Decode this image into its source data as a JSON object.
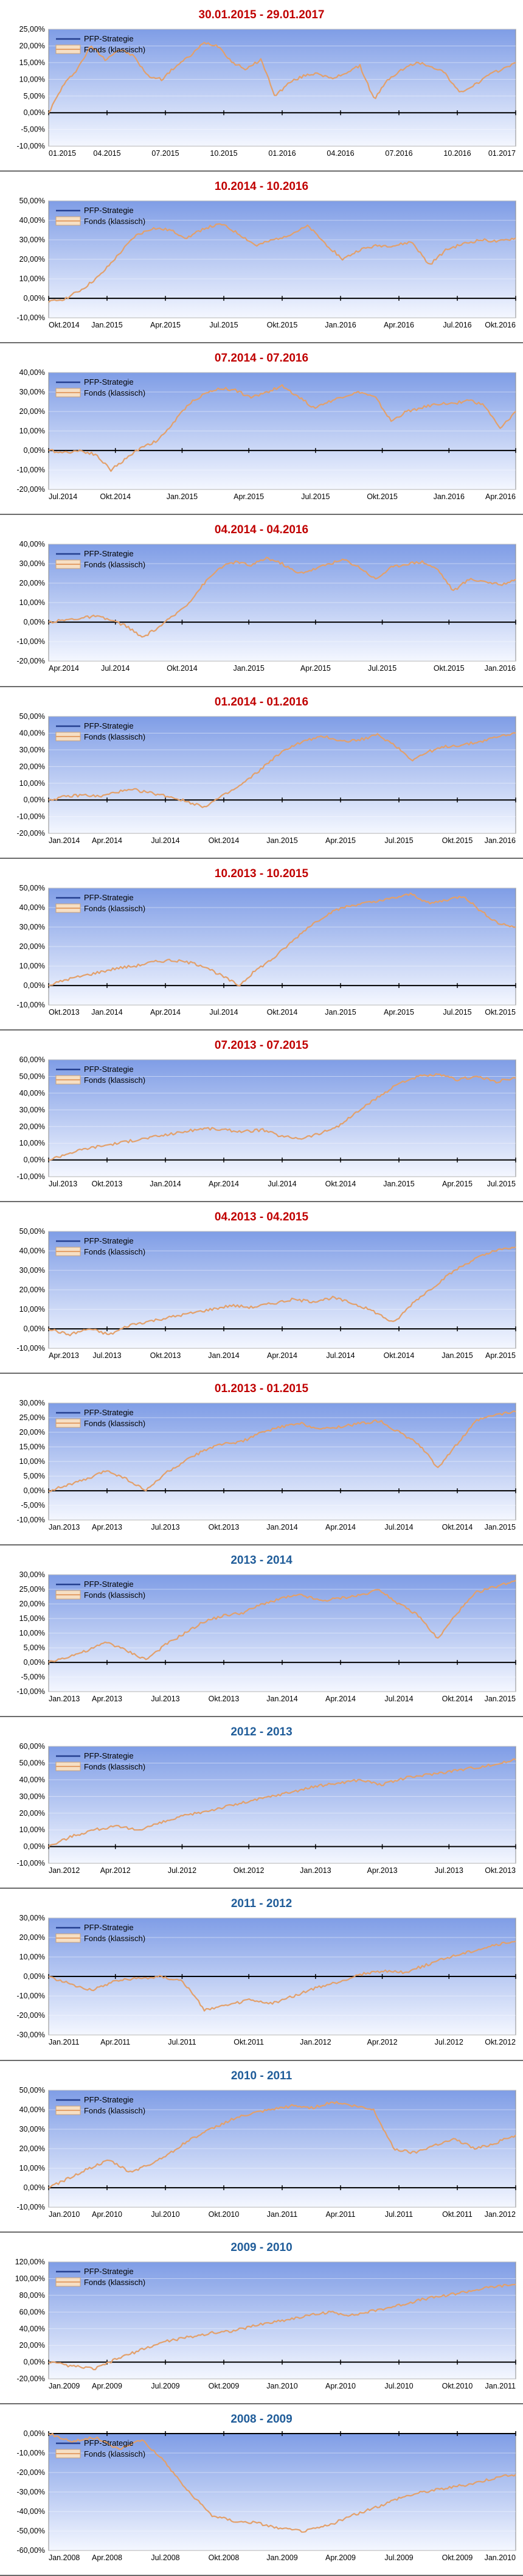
{
  "legend": {
    "series1": "PFP-Strategie",
    "series2": "Fonds (klassisch)"
  },
  "colors": {
    "title_red": "#c00000",
    "title_blue": "#1f5c99",
    "fonds_line": "#e3a06a",
    "pfp_line": "#243f8f",
    "plot_top": "#7f9de6",
    "plot_bottom": "#f4f7ff"
  },
  "chart_data": [
    {
      "type": "line",
      "title": "30.01.2015 - 29.01.2017",
      "title_color": "red",
      "ylim": [
        -10,
        25
      ],
      "yticks": [
        "25,00%",
        "20,00%",
        "15,00%",
        "10,00%",
        "5,00%",
        "0,00%",
        "-5,00%",
        "-10,00%"
      ],
      "xticks": [
        "01.2015",
        "04.2015",
        "07.2015",
        "10.2015",
        "01.2016",
        "04.2016",
        "07.2016",
        "10.2016",
        "01.2017"
      ],
      "series": [
        {
          "name": "Fonds (klassisch)",
          "values": [
            0,
            8,
            13,
            20,
            16,
            19,
            17,
            11,
            10,
            14,
            17,
            21,
            20,
            15,
            13,
            16,
            5,
            9,
            11,
            12,
            10,
            12,
            14,
            4,
            10,
            13,
            15,
            14,
            12,
            6,
            8,
            11,
            13,
            15
          ]
        }
      ]
    },
    {
      "type": "line",
      "title": "10.2014 - 10.2016",
      "title_color": "red",
      "ylim": [
        -10,
        50
      ],
      "yticks": [
        "50,00%",
        "40,00%",
        "30,00%",
        "20,00%",
        "10,00%",
        "0,00%",
        "-10,00%"
      ],
      "xticks": [
        "Okt.2014",
        "Jan.2015",
        "Apr.2015",
        "Jul.2015",
        "Okt.2015",
        "Jan.2016",
        "Apr.2016",
        "Jul.2016",
        "Okt.2016"
      ],
      "series": [
        {
          "name": "Fonds (klassisch)",
          "values": [
            -2,
            0,
            5,
            12,
            22,
            32,
            36,
            35,
            31,
            36,
            38,
            33,
            27,
            30,
            33,
            37,
            28,
            20,
            25,
            27,
            27,
            29,
            17,
            25,
            28,
            30,
            29,
            31
          ]
        }
      ]
    },
    {
      "type": "line",
      "title": "07.2014 - 07.2016",
      "title_color": "red",
      "ylim": [
        -20,
        40
      ],
      "yticks": [
        "40,00%",
        "30,00%",
        "20,00%",
        "10,00%",
        "0,00%",
        "-10,00%",
        "-20,00%"
      ],
      "xticks": [
        "Jul.2014",
        "Okt.2014",
        "Jan.2015",
        "Apr.2015",
        "Jul.2015",
        "Okt.2015",
        "Jan.2016",
        "Apr.2016"
      ],
      "series": [
        {
          "name": "Fonds (klassisch)",
          "values": [
            0,
            -1,
            0,
            -2,
            -10,
            -4,
            2,
            5,
            14,
            24,
            29,
            32,
            31,
            27,
            30,
            33,
            28,
            22,
            25,
            28,
            30,
            27,
            15,
            20,
            22,
            24,
            24,
            26,
            23,
            11,
            20
          ]
        }
      ]
    },
    {
      "type": "line",
      "title": "04.2014 - 04.2016",
      "title_color": "red",
      "ylim": [
        -20,
        40
      ],
      "yticks": [
        "40,00%",
        "30,00%",
        "20,00%",
        "10,00%",
        "0,00%",
        "-10,00%",
        "-20,00%"
      ],
      "xticks": [
        "Apr.2014",
        "Jul.2014",
        "Okt.2014",
        "Jan.2015",
        "Apr.2015",
        "Jul.2015",
        "Okt.2015",
        "Jan.2016"
      ],
      "series": [
        {
          "name": "Fonds (klassisch)",
          "values": [
            0,
            1,
            2,
            3,
            1,
            -2,
            -8,
            -3,
            3,
            10,
            20,
            28,
            31,
            29,
            33,
            30,
            25,
            27,
            30,
            32,
            28,
            22,
            28,
            30,
            31,
            27,
            16,
            22,
            21,
            19,
            22
          ]
        }
      ]
    },
    {
      "type": "line",
      "title": "01.2014 - 01.2016",
      "title_color": "red",
      "ylim": [
        -20,
        50
      ],
      "yticks": [
        "50,00%",
        "40,00%",
        "30,00%",
        "20,00%",
        "10,00%",
        "0,00%",
        "-10,00%",
        "-20,00%"
      ],
      "xticks": [
        "Jan.2014",
        "Apr.2014",
        "Jul.2014",
        "Okt.2014",
        "Jan.2015",
        "Apr.2015",
        "Jul.2015",
        "Okt.2015",
        "Jan.2016"
      ],
      "series": [
        {
          "name": "Fonds (klassisch)",
          "values": [
            0,
            2,
            3,
            2,
            5,
            6,
            4,
            2,
            -1,
            -4,
            2,
            8,
            16,
            25,
            32,
            36,
            38,
            35,
            36,
            39,
            33,
            24,
            29,
            32,
            33,
            35,
            38,
            40
          ]
        }
      ]
    },
    {
      "type": "line",
      "title": "10.2013 - 10.2015",
      "title_color": "red",
      "ylim": [
        -10,
        50
      ],
      "yticks": [
        "50,00%",
        "40,00%",
        "30,00%",
        "20,00%",
        "10,00%",
        "0,00%",
        "-10,00%"
      ],
      "xticks": [
        "Okt.2013",
        "Jan.2014",
        "Apr.2014",
        "Jul.2014",
        "Okt.2014",
        "Jan.2015",
        "Apr.2015",
        "Jul.2015",
        "Okt.2015"
      ],
      "series": [
        {
          "name": "Fonds (klassisch)",
          "values": [
            0,
            3,
            5,
            7,
            9,
            10,
            12,
            13,
            12,
            10,
            5,
            0,
            8,
            14,
            22,
            30,
            36,
            40,
            42,
            43,
            45,
            47,
            42,
            44,
            46,
            38,
            32,
            30
          ]
        }
      ]
    },
    {
      "type": "line",
      "title": "07.2013 - 07.2015",
      "title_color": "red",
      "ylim": [
        -10,
        60
      ],
      "yticks": [
        "60,00%",
        "50,00%",
        "40,00%",
        "30,00%",
        "20,00%",
        "10,00%",
        "0,00%",
        "-10,00%"
      ],
      "xticks": [
        "Jul.2013",
        "Okt.2013",
        "Jan.2014",
        "Apr.2014",
        "Jul.2014",
        "Okt.2014",
        "Jan.2015",
        "Apr.2015",
        "Jul.2015"
      ],
      "series": [
        {
          "name": "Fonds (klassisch)",
          "values": [
            0,
            4,
            7,
            9,
            11,
            13,
            15,
            17,
            19,
            18,
            17,
            18,
            14,
            13,
            16,
            21,
            30,
            38,
            46,
            50,
            51,
            48,
            50,
            47,
            49
          ]
        }
      ]
    },
    {
      "type": "line",
      "title": "04.2013 - 04.2015",
      "title_color": "red",
      "ylim": [
        -10,
        50
      ],
      "yticks": [
        "50,00%",
        "40,00%",
        "30,00%",
        "20,00%",
        "10,00%",
        "0,00%",
        "-10,00%"
      ],
      "xticks": [
        "Apr.2013",
        "Jul.2013",
        "Okt.2013",
        "Jan.2014",
        "Apr.2014",
        "Jul.2014",
        "Okt.2014",
        "Jan.2015",
        "Apr.2015"
      ],
      "series": [
        {
          "name": "Fonds (klassisch)",
          "values": [
            0,
            -3,
            0,
            -3,
            2,
            4,
            6,
            8,
            10,
            12,
            11,
            13,
            15,
            14,
            16,
            13,
            9,
            3,
            14,
            22,
            30,
            36,
            40,
            42
          ]
        }
      ]
    },
    {
      "type": "line",
      "title": "01.2013 - 01.2015",
      "title_color": "red",
      "ylim": [
        -10,
        30
      ],
      "yticks": [
        "30,00%",
        "25,00%",
        "20,00%",
        "15,00%",
        "10,00%",
        "5,00%",
        "0,00%",
        "-5,00%",
        "-10,00%"
      ],
      "xticks": [
        "Jan.2013",
        "Apr.2013",
        "Jul.2013",
        "Okt.2013",
        "Jan.2014",
        "Apr.2014",
        "Jul.2014",
        "Okt.2014",
        "Jan.2015"
      ],
      "series": [
        {
          "name": "Fonds (klassisch)",
          "values": [
            0,
            2,
            4,
            7,
            4,
            0,
            6,
            10,
            14,
            16,
            17,
            20,
            22,
            23,
            21,
            22,
            23,
            24,
            20,
            16,
            8,
            16,
            24,
            26,
            27
          ]
        }
      ]
    },
    {
      "type": "line",
      "title": "2013 - 2014",
      "title_color": "blue",
      "ylim": [
        -10,
        30
      ],
      "yticks": [
        "30,00%",
        "25,00%",
        "20,00%",
        "15,00%",
        "10,00%",
        "5,00%",
        "0,00%",
        "-5,00%",
        "-10,00%"
      ],
      "xticks": [
        "Jan.2013",
        "Apr.2013",
        "Jul.2013",
        "Okt.2013",
        "Jan.2014",
        "Apr.2014",
        "Jul.2014",
        "Okt.2014",
        "Jan.2015"
      ],
      "series": [
        {
          "name": "Fonds (klassisch)",
          "values": [
            0,
            2,
            4,
            7,
            4,
            1,
            6,
            10,
            14,
            16,
            17,
            20,
            22,
            23,
            21,
            22,
            23,
            25,
            20,
            16,
            8,
            17,
            24,
            26,
            28
          ]
        }
      ]
    },
    {
      "type": "line",
      "title": "2012 - 2013",
      "title_color": "blue",
      "ylim": [
        -10,
        60
      ],
      "yticks": [
        "60,00%",
        "50,00%",
        "40,00%",
        "30,00%",
        "20,00%",
        "10,00%",
        "0,00%",
        "-10,00%"
      ],
      "xticks": [
        "Jan.2012",
        "Apr.2012",
        "Jul.2012",
        "Okt.2012",
        "Jan.2013",
        "Apr.2013",
        "Jul.2013",
        "Okt.2013"
      ],
      "series": [
        {
          "name": "Fonds (klassisch)",
          "values": [
            0,
            6,
            10,
            12,
            10,
            14,
            18,
            21,
            24,
            27,
            30,
            33,
            36,
            38,
            40,
            37,
            41,
            43,
            45,
            47,
            49,
            52
          ]
        }
      ]
    },
    {
      "type": "line",
      "title": "2011 - 2012",
      "title_color": "blue",
      "ylim": [
        -30,
        30
      ],
      "yticks": [
        "30,00%",
        "20,00%",
        "10,00%",
        "0,00%",
        "-10,00%",
        "-20,00%",
        "-30,00%"
      ],
      "xticks": [
        "Jan.2011",
        "Apr.2011",
        "Jul.2011",
        "Okt.2011",
        "Jan.2012",
        "Apr.2012",
        "Jul.2012",
        "Okt.2012"
      ],
      "series": [
        {
          "name": "Fonds (klassisch)",
          "values": [
            0,
            -4,
            -7,
            -2,
            -1,
            0,
            -2,
            -17,
            -15,
            -12,
            -14,
            -10,
            -6,
            -3,
            1,
            3,
            2,
            6,
            10,
            13,
            16,
            18
          ]
        }
      ]
    },
    {
      "type": "line",
      "title": "2010 - 2011",
      "title_color": "blue",
      "ylim": [
        -10,
        50
      ],
      "yticks": [
        "50,00%",
        "40,00%",
        "30,00%",
        "20,00%",
        "10,00%",
        "0,00%",
        "-10,00%"
      ],
      "xticks": [
        "Jan.2010",
        "Apr.2010",
        "Jul.2010",
        "Okt.2010",
        "Jan.2011",
        "Apr.2011",
        "Jul.2011",
        "Okt.2011",
        "Jan.2012"
      ],
      "series": [
        {
          "name": "Fonds (klassisch)",
          "values": [
            0,
            5,
            10,
            14,
            8,
            12,
            18,
            25,
            30,
            35,
            38,
            40,
            42,
            41,
            44,
            42,
            40,
            20,
            18,
            22,
            25,
            20,
            23,
            27
          ]
        }
      ]
    },
    {
      "type": "line",
      "title": "2009 - 2010",
      "title_color": "blue",
      "ylim": [
        -20,
        120
      ],
      "yticks": [
        "120,00%",
        "100,00%",
        "80,00%",
        "60,00%",
        "40,00%",
        "20,00%",
        "0,00%",
        "-20,00%"
      ],
      "xticks": [
        "Jan.2009",
        "Apr.2009",
        "Jul.2009",
        "Okt.2009",
        "Jan.2010",
        "Apr.2010",
        "Jul.2010",
        "Okt.2010",
        "Jan.2011"
      ],
      "series": [
        {
          "name": "Fonds (klassisch)",
          "values": [
            0,
            -5,
            -8,
            5,
            15,
            25,
            30,
            35,
            38,
            45,
            50,
            55,
            60,
            56,
            62,
            68,
            75,
            80,
            85,
            90,
            93
          ]
        }
      ]
    },
    {
      "type": "line",
      "title": "2008 - 2009",
      "title_color": "blue",
      "ylim": [
        -60,
        0
      ],
      "yticks": [
        "0,00%",
        "-10,00%",
        "-20,00%",
        "-30,00%",
        "-40,00%",
        "-50,00%",
        "-60,00%"
      ],
      "xticks": [
        "Jan.2008",
        "Apr.2008",
        "Jul.2008",
        "Okt.2008",
        "Jan.2009",
        "Apr.2009",
        "Jul.2009",
        "Okt.2009",
        "Jan.2010"
      ],
      "series": [
        {
          "name": "Fonds (klassisch)",
          "values": [
            0,
            -4,
            -2,
            -8,
            -3,
            -15,
            -30,
            -42,
            -45,
            -46,
            -49,
            -50,
            -47,
            -42,
            -38,
            -33,
            -30,
            -28,
            -26,
            -23,
            -21
          ]
        }
      ]
    }
  ]
}
